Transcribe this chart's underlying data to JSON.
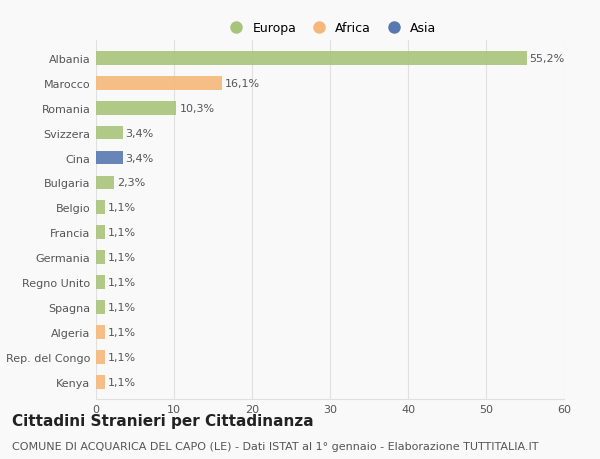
{
  "categories": [
    "Albania",
    "Marocco",
    "Romania",
    "Svizzera",
    "Cina",
    "Bulgaria",
    "Belgio",
    "Francia",
    "Germania",
    "Regno Unito",
    "Spagna",
    "Algeria",
    "Rep. del Congo",
    "Kenya"
  ],
  "values": [
    55.2,
    16.1,
    10.3,
    3.4,
    3.4,
    2.3,
    1.1,
    1.1,
    1.1,
    1.1,
    1.1,
    1.1,
    1.1,
    1.1
  ],
  "labels": [
    "55,2%",
    "16,1%",
    "10,3%",
    "3,4%",
    "3,4%",
    "2,3%",
    "1,1%",
    "1,1%",
    "1,1%",
    "1,1%",
    "1,1%",
    "1,1%",
    "1,1%",
    "1,1%"
  ],
  "colors": [
    "#a8c47a",
    "#f5b87a",
    "#a8c47a",
    "#a8c47a",
    "#5878b0",
    "#a8c47a",
    "#a8c47a",
    "#a8c47a",
    "#a8c47a",
    "#a8c47a",
    "#a8c47a",
    "#f5b87a",
    "#f5b87a",
    "#f5b87a"
  ],
  "legend_labels": [
    "Europa",
    "Africa",
    "Asia"
  ],
  "legend_colors": [
    "#a8c47a",
    "#f5b87a",
    "#5878b0"
  ],
  "title": "Cittadini Stranieri per Cittadinanza",
  "subtitle": "COMUNE DI ACQUARICA DEL CAPO (LE) - Dati ISTAT al 1° gennaio - Elaborazione TUTTITALIA.IT",
  "xlim": [
    0,
    60
  ],
  "xticks": [
    0,
    10,
    20,
    30,
    40,
    50,
    60
  ],
  "background_color": "#f9f9f9",
  "grid_color": "#e0e0e0",
  "bar_height": 0.55,
  "title_fontsize": 11,
  "subtitle_fontsize": 8,
  "label_fontsize": 8,
  "tick_fontsize": 8,
  "legend_fontsize": 9
}
